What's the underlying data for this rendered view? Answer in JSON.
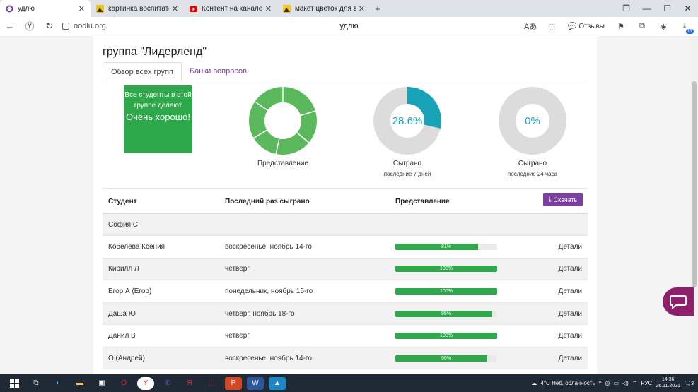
{
  "browser": {
    "tabs": [
      {
        "title": "удлю",
        "active": true
      },
      {
        "title": "картинка воспитательн",
        "active": false
      },
      {
        "title": "Контент на канале - YouTube",
        "active": false
      },
      {
        "title": "макет цветок для вырезания",
        "active": false
      }
    ],
    "new_tab": "+",
    "window_controls": {
      "tabs": "❐",
      "minimize": "—",
      "maximize": "☐",
      "close": "✕"
    },
    "url": "oodlu.org",
    "page_title": "удлю",
    "reviews_label": "Отзывы",
    "extension_badge": "11"
  },
  "page": {
    "group_title": "группа \"Лидерленд\"",
    "tabs": [
      {
        "label": "Обзор всех групп",
        "active": true
      },
      {
        "label": "Банки вопросов",
        "active": false
      }
    ],
    "status_box": {
      "line1": "Все студенты в этой группе делают",
      "line2": "Очень хорошо!"
    },
    "stats": [
      {
        "label": "Представление",
        "sublabel": "",
        "value_text": "",
        "value": 1.0,
        "color": "#5cb85c"
      },
      {
        "label": "Сыграно",
        "sublabel": "последние 7 дней",
        "value_text": "28.6%",
        "value": 0.286,
        "color": "#17a2b8"
      },
      {
        "label": "Сыграно",
        "sublabel": "последние 24 часа",
        "value_text": "0%",
        "value": 0.0,
        "color": "#17a2b8"
      }
    ],
    "download_label": "Скачать",
    "table": {
      "headers": [
        "Студент",
        "Последний раз сыграно",
        "Представление"
      ],
      "details_label": "Детали",
      "rows": [
        {
          "student": "София С",
          "last_played": "",
          "performance": null,
          "perf_text": ""
        },
        {
          "student": "Кобелева Ксения",
          "last_played": "воскресенье, ноябрь 14-го",
          "performance": 81,
          "perf_text": "81%"
        },
        {
          "student": "Кирилл Л",
          "last_played": "четверг",
          "performance": 100,
          "perf_text": "100%"
        },
        {
          "student": "Егор А (Егор)",
          "last_played": "понедельник, ноябрь 15-го",
          "performance": 100,
          "perf_text": "100%"
        },
        {
          "student": "Даша Ю",
          "last_played": "четверг, ноябрь 18-го",
          "performance": 95,
          "perf_text": "95%"
        },
        {
          "student": "Данил В",
          "last_played": "четверг",
          "performance": 100,
          "perf_text": "100%"
        },
        {
          "student": "О (Андрей)",
          "last_played": "воскресенье, ноябрь 14-го",
          "performance": 90,
          "perf_text": "90%"
        }
      ]
    }
  },
  "taskbar": {
    "weather": "4°C  Неб. облачность",
    "language": "РУС",
    "time": "14:36",
    "date": "26.11.2021",
    "notifications": "3"
  },
  "colors": {
    "accent": "#7b3fa0",
    "success": "#2ea84a",
    "info": "#17a2b8",
    "chat": "#8e1f6a"
  }
}
